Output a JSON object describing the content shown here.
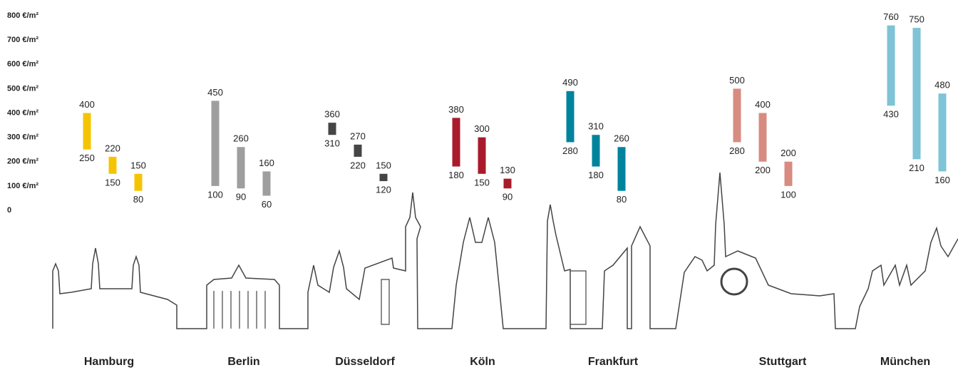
{
  "chart_data": {
    "type": "range_bar",
    "ylim": [
      0,
      800
    ],
    "yticks": [
      0,
      {
        "value": 100,
        "label": "100 €/m²"
      },
      {
        "value": 200,
        "label": "200 €/m²"
      },
      {
        "value": 300,
        "label": "300 €/m²"
      },
      {
        "value": 400,
        "label": "400 €/m²"
      },
      {
        "value": 500,
        "label": "500 €/m²"
      },
      {
        "value": 600,
        "label": "600 €/m²"
      },
      {
        "value": 700,
        "label": "700 €/m²"
      },
      {
        "value": 800,
        "label": "800 €/m²"
      }
    ],
    "groups": [
      {
        "name": "Hamburg",
        "color": "#f5c400",
        "ranges": [
          {
            "low": 250,
            "high": 400
          },
          {
            "low": 150,
            "high": 220
          },
          {
            "low": 80,
            "high": 150
          }
        ]
      },
      {
        "name": "Berlin",
        "color": "#9e9e9e",
        "ranges": [
          {
            "low": 100,
            "high": 450
          },
          {
            "low": 90,
            "high": 260
          },
          {
            "low": 60,
            "high": 160
          }
        ]
      },
      {
        "name": "Düsseldorf",
        "color": "#454545",
        "ranges": [
          {
            "low": 310,
            "high": 360
          },
          {
            "low": 220,
            "high": 270
          },
          {
            "low": 120,
            "high": 150
          }
        ]
      },
      {
        "name": "Köln",
        "color": "#a91b2b",
        "ranges": [
          {
            "low": 180,
            "high": 380
          },
          {
            "low": 150,
            "high": 300
          },
          {
            "low": 90,
            "high": 130
          }
        ]
      },
      {
        "name": "Frankfurt",
        "color": "#00849e",
        "ranges": [
          {
            "low": 280,
            "high": 490
          },
          {
            "low": 180,
            "high": 310
          },
          {
            "low": 80,
            "high": 260
          }
        ]
      },
      {
        "name": "Stuttgart",
        "color": "#d88b80",
        "ranges": [
          {
            "low": 280,
            "high": 500
          },
          {
            "low": 200,
            "high": 400
          },
          {
            "low": 100,
            "high": 200
          }
        ]
      },
      {
        "name": "München",
        "color": "#7ec3d6",
        "ranges": [
          {
            "low": 430,
            "high": 760
          },
          {
            "low": 210,
            "high": 750
          },
          {
            "low": 160,
            "high": 480
          }
        ]
      }
    ]
  }
}
